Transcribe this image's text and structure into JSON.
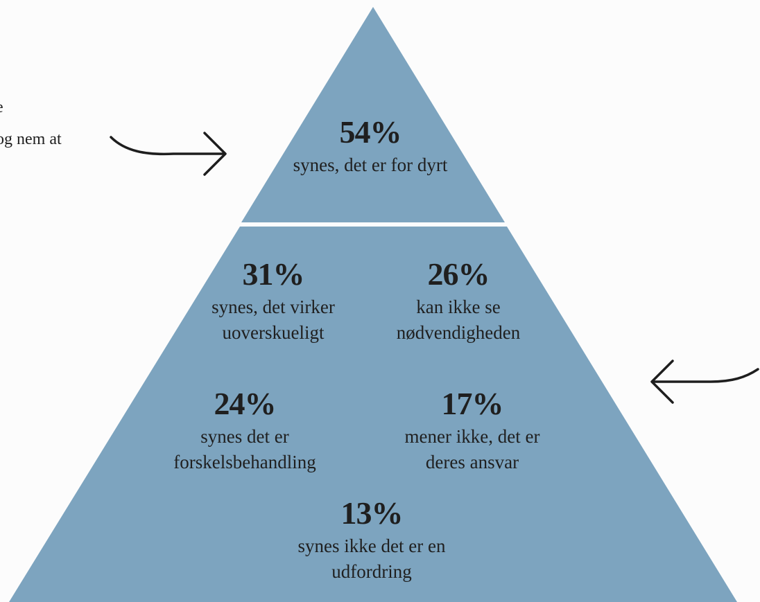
{
  "pyramid": {
    "fill_color": "#7da4bf",
    "top": {
      "percent": "54%",
      "label": "synes, det er for dyrt"
    },
    "bottom": [
      {
        "percent": "31%",
        "label": "synes, det virker\nuoverskueligt"
      },
      {
        "percent": "26%",
        "label": "kan ikke se\nnødvendigheden"
      },
      {
        "percent": "24%",
        "label": "synes det er\nforskelsbehandling"
      },
      {
        "percent": "17%",
        "label": "mener ikke, det er\nderes ansvar"
      },
      {
        "percent": "13%",
        "label": "synes ikke det er en\nudfordring"
      }
    ]
  },
  "side_text": {
    "left_fragment_top": "e",
    "left_fragment": "og nem at"
  },
  "icons": {
    "left_arrow": "arrow-right-icon",
    "right_arrow": "arrow-left-icon"
  }
}
